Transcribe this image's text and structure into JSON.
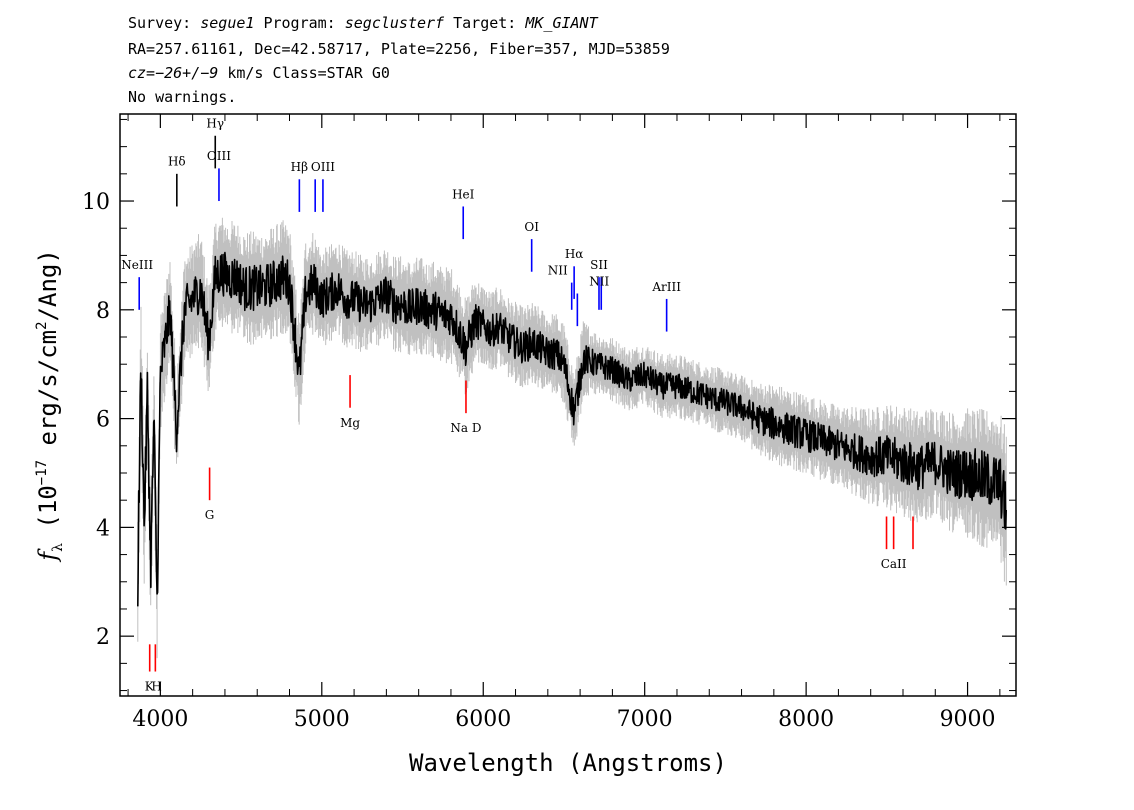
{
  "header": {
    "line1": {
      "survey_label": "Survey: ",
      "survey": "segue1",
      "program_label": " Program: ",
      "program": "segclusterf",
      "target_label": " Target: ",
      "target": "MK_GIANT"
    },
    "line2": "RA=257.61161, Dec=42.58717, Plate=2256, Fiber=357, MJD=53859",
    "line3": {
      "cz_label": "cz=",
      "cz": "−26+/−9",
      "cz_unit": " km/s Class=STAR G0"
    },
    "line4": "No warnings."
  },
  "chart_data": {
    "type": "line",
    "xlabel": "Wavelength (Angstroms)",
    "ylabel": "f_λ (10^-17 erg/s/cm^2/Ang)",
    "ylabel_parts": {
      "pre": " (10",
      "exp1": "−17",
      "mid": " erg/s/cm",
      "exp2": "2",
      "post": "/Ang)"
    },
    "xlim": [
      3750,
      9300
    ],
    "ylim": [
      0.9,
      11.6
    ],
    "x_ticks": [
      4000,
      5000,
      6000,
      7000,
      8000,
      9000
    ],
    "y_ticks": [
      2,
      4,
      6,
      8,
      10
    ],
    "x_tick_labels": [
      "4000",
      "5000",
      "6000",
      "7000",
      "8000",
      "9000"
    ],
    "y_tick_labels": [
      "2",
      "4",
      "6",
      "8",
      "10"
    ],
    "series": [
      {
        "role": "flux",
        "color": "#000000",
        "x": [
          3860,
          3880,
          3900,
          3920,
          3940,
          3960,
          3980,
          4000,
          4030,
          4060,
          4100,
          4150,
          4200,
          4250,
          4300,
          4340,
          4380,
          4420,
          4470,
          4520,
          4580,
          4640,
          4700,
          4760,
          4800,
          4861,
          4900,
          4950,
          5000,
          5050,
          5100,
          5150,
          5200,
          5250,
          5300,
          5350,
          5400,
          5450,
          5500,
          5550,
          5600,
          5650,
          5700,
          5750,
          5800,
          5850,
          5893,
          5950,
          6000,
          6050,
          6100,
          6150,
          6200,
          6250,
          6300,
          6350,
          6400,
          6450,
          6500,
          6563,
          6620,
          6700,
          6800,
          6900,
          7000,
          7100,
          7200,
          7300,
          7400,
          7500,
          7600,
          7700,
          7800,
          7900,
          8000,
          8100,
          8200,
          8300,
          8400,
          8500,
          8600,
          8700,
          8800,
          8900,
          9000,
          9100,
          9200,
          9240
        ],
        "y": [
          3.0,
          7.0,
          4.0,
          6.5,
          3.2,
          6.0,
          2.6,
          6.8,
          7.4,
          8.0,
          5.8,
          8.0,
          8.2,
          8.4,
          7.4,
          8.6,
          8.7,
          8.6,
          8.6,
          8.4,
          8.4,
          8.4,
          8.5,
          8.6,
          8.5,
          6.8,
          8.3,
          8.5,
          8.2,
          8.3,
          8.4,
          8.2,
          8.2,
          8.1,
          8.1,
          8.2,
          8.3,
          8.1,
          8.1,
          8.0,
          8.1,
          8.0,
          8.0,
          7.9,
          7.9,
          7.6,
          7.3,
          7.8,
          7.7,
          7.6,
          7.7,
          7.5,
          7.4,
          7.3,
          7.4,
          7.3,
          7.2,
          7.2,
          7.0,
          6.1,
          7.1,
          7.0,
          6.9,
          6.7,
          6.8,
          6.6,
          6.6,
          6.5,
          6.4,
          6.3,
          6.2,
          6.0,
          5.9,
          5.8,
          5.7,
          5.6,
          5.5,
          5.4,
          5.3,
          5.3,
          5.2,
          5.1,
          5.2,
          5.0,
          5.0,
          4.9,
          4.8,
          4.3
        ]
      },
      {
        "role": "error",
        "color": "#c0c0c0",
        "x": [
          3860,
          3900,
          3950,
          4000,
          4100,
          4200,
          4300,
          4400,
          4500,
          4600,
          4700,
          4800,
          4900,
          5000,
          5100,
          5200,
          5300,
          5400,
          5500,
          5600,
          5700,
          5800,
          5900,
          6000,
          6100,
          6200,
          6300,
          6400,
          6500,
          6600,
          6700,
          6800,
          6900,
          7000,
          7200,
          7400,
          7600,
          7800,
          8000,
          8200,
          8400,
          8600,
          8800,
          9000,
          9200,
          9240
        ],
        "y": [
          0.9,
          0.8,
          0.8,
          0.7,
          0.7,
          0.7,
          0.7,
          0.7,
          0.7,
          0.7,
          0.7,
          0.7,
          0.7,
          0.6,
          0.6,
          0.6,
          0.6,
          0.6,
          0.6,
          0.6,
          0.6,
          0.6,
          0.6,
          0.5,
          0.5,
          0.5,
          0.5,
          0.5,
          0.5,
          0.5,
          0.4,
          0.4,
          0.4,
          0.4,
          0.4,
          0.4,
          0.4,
          0.5,
          0.5,
          0.5,
          0.6,
          0.7,
          0.7,
          0.8,
          0.9,
          1.0
        ]
      }
    ],
    "lines": [
      {
        "label": "NeIII",
        "x": 3869,
        "color": "#0000ff",
        "y_bottom": 8.0,
        "y_top": 8.6,
        "label_pos": "above",
        "label_y": 8.75
      },
      {
        "label": "Hδ",
        "x": 4102,
        "color": "#000000",
        "y_bottom": 9.9,
        "y_top": 10.5,
        "label_pos": "above",
        "label_y": 10.65
      },
      {
        "label": "Hγ",
        "x": 4340,
        "color": "#000000",
        "y_bottom": 10.6,
        "y_top": 11.2,
        "label_pos": "above",
        "label_y": 11.35
      },
      {
        "label": "OIII",
        "x": 4363,
        "color": "#0000ff",
        "y_bottom": 10.0,
        "y_top": 10.6,
        "label_pos": "above",
        "label_y": 10.75
      },
      {
        "label": "Hβ",
        "x": 4861,
        "color": "#0000ff",
        "y_bottom": 9.8,
        "y_top": 10.4,
        "label_pos": "above",
        "label_y": 10.55
      },
      {
        "label": "",
        "x": 4959,
        "color": "#0000ff",
        "y_bottom": 9.8,
        "y_top": 10.4,
        "label_pos": "above",
        "label_y": 10.55
      },
      {
        "label": "OIII",
        "x": 5007,
        "color": "#0000ff",
        "y_bottom": 9.8,
        "y_top": 10.4,
        "label_pos": "above",
        "label_y": 10.55
      },
      {
        "label": "HeI",
        "x": 5876,
        "color": "#0000ff",
        "y_bottom": 9.3,
        "y_top": 9.9,
        "label_pos": "above",
        "label_y": 10.05
      },
      {
        "label": "OI",
        "x": 6300,
        "color": "#0000ff",
        "y_bottom": 8.7,
        "y_top": 9.3,
        "label_pos": "above",
        "label_y": 9.45
      },
      {
        "label": "NII",
        "x": 6548,
        "color": "#0000ff",
        "y_bottom": 8.0,
        "y_top": 8.5,
        "label_pos": "left",
        "label_y": 8.65
      },
      {
        "label": "Hα",
        "x": 6563,
        "color": "#0000ff",
        "y_bottom": 8.2,
        "y_top": 8.8,
        "label_pos": "above",
        "label_y": 8.95
      },
      {
        "label": "",
        "x": 6583,
        "color": "#0000ff",
        "y_bottom": 7.7,
        "y_top": 8.3,
        "label_pos": "above",
        "label_y": 8.45
      },
      {
        "label": "SII",
        "x": 6717,
        "color": "#0000ff",
        "y_bottom": 8.0,
        "y_top": 8.6,
        "label_pos": "above",
        "label_y": 8.75
      },
      {
        "label": "NII",
        "x": 6731,
        "color": "#0000ff",
        "y_bottom": 8.0,
        "y_top": 8.6,
        "label_pos": "right",
        "label_y": 8.45
      },
      {
        "label": "ArIII",
        "x": 7136,
        "color": "#0000ff",
        "y_bottom": 7.6,
        "y_top": 8.2,
        "label_pos": "above",
        "label_y": 8.35
      },
      {
        "label": "K",
        "x": 3934,
        "color": "#ff0000",
        "y_bottom": 1.35,
        "y_top": 1.85,
        "label_pos": "below",
        "label_y": 1.0
      },
      {
        "label": "H",
        "x": 3969,
        "color": "#ff0000",
        "y_bottom": 1.35,
        "y_top": 1.85,
        "label_pos": "below",
        "label_y": 1.0
      },
      {
        "label": "G",
        "x": 4305,
        "color": "#ff0000",
        "y_bottom": 4.5,
        "y_top": 5.1,
        "label_pos": "below",
        "label_y": 4.15
      },
      {
        "label": "Mg",
        "x": 5175,
        "color": "#ff0000",
        "y_bottom": 6.2,
        "y_top": 6.8,
        "label_pos": "below",
        "label_y": 5.85
      },
      {
        "label": "Na  D",
        "x": 5893,
        "color": "#ff0000",
        "y_bottom": 6.1,
        "y_top": 6.7,
        "label_pos": "below",
        "label_y": 5.75
      },
      {
        "label": "",
        "x": 8498,
        "color": "#ff0000",
        "y_bottom": 3.6,
        "y_top": 4.2,
        "label_pos": "below",
        "label_y": 3.25
      },
      {
        "label": "CaII",
        "x": 8542,
        "color": "#ff0000",
        "y_bottom": 3.6,
        "y_top": 4.2,
        "label_pos": "below",
        "label_y": 3.25
      },
      {
        "label": "",
        "x": 8662,
        "color": "#ff0000",
        "y_bottom": 3.6,
        "y_top": 4.2,
        "label_pos": "below",
        "label_y": 3.25
      }
    ]
  }
}
